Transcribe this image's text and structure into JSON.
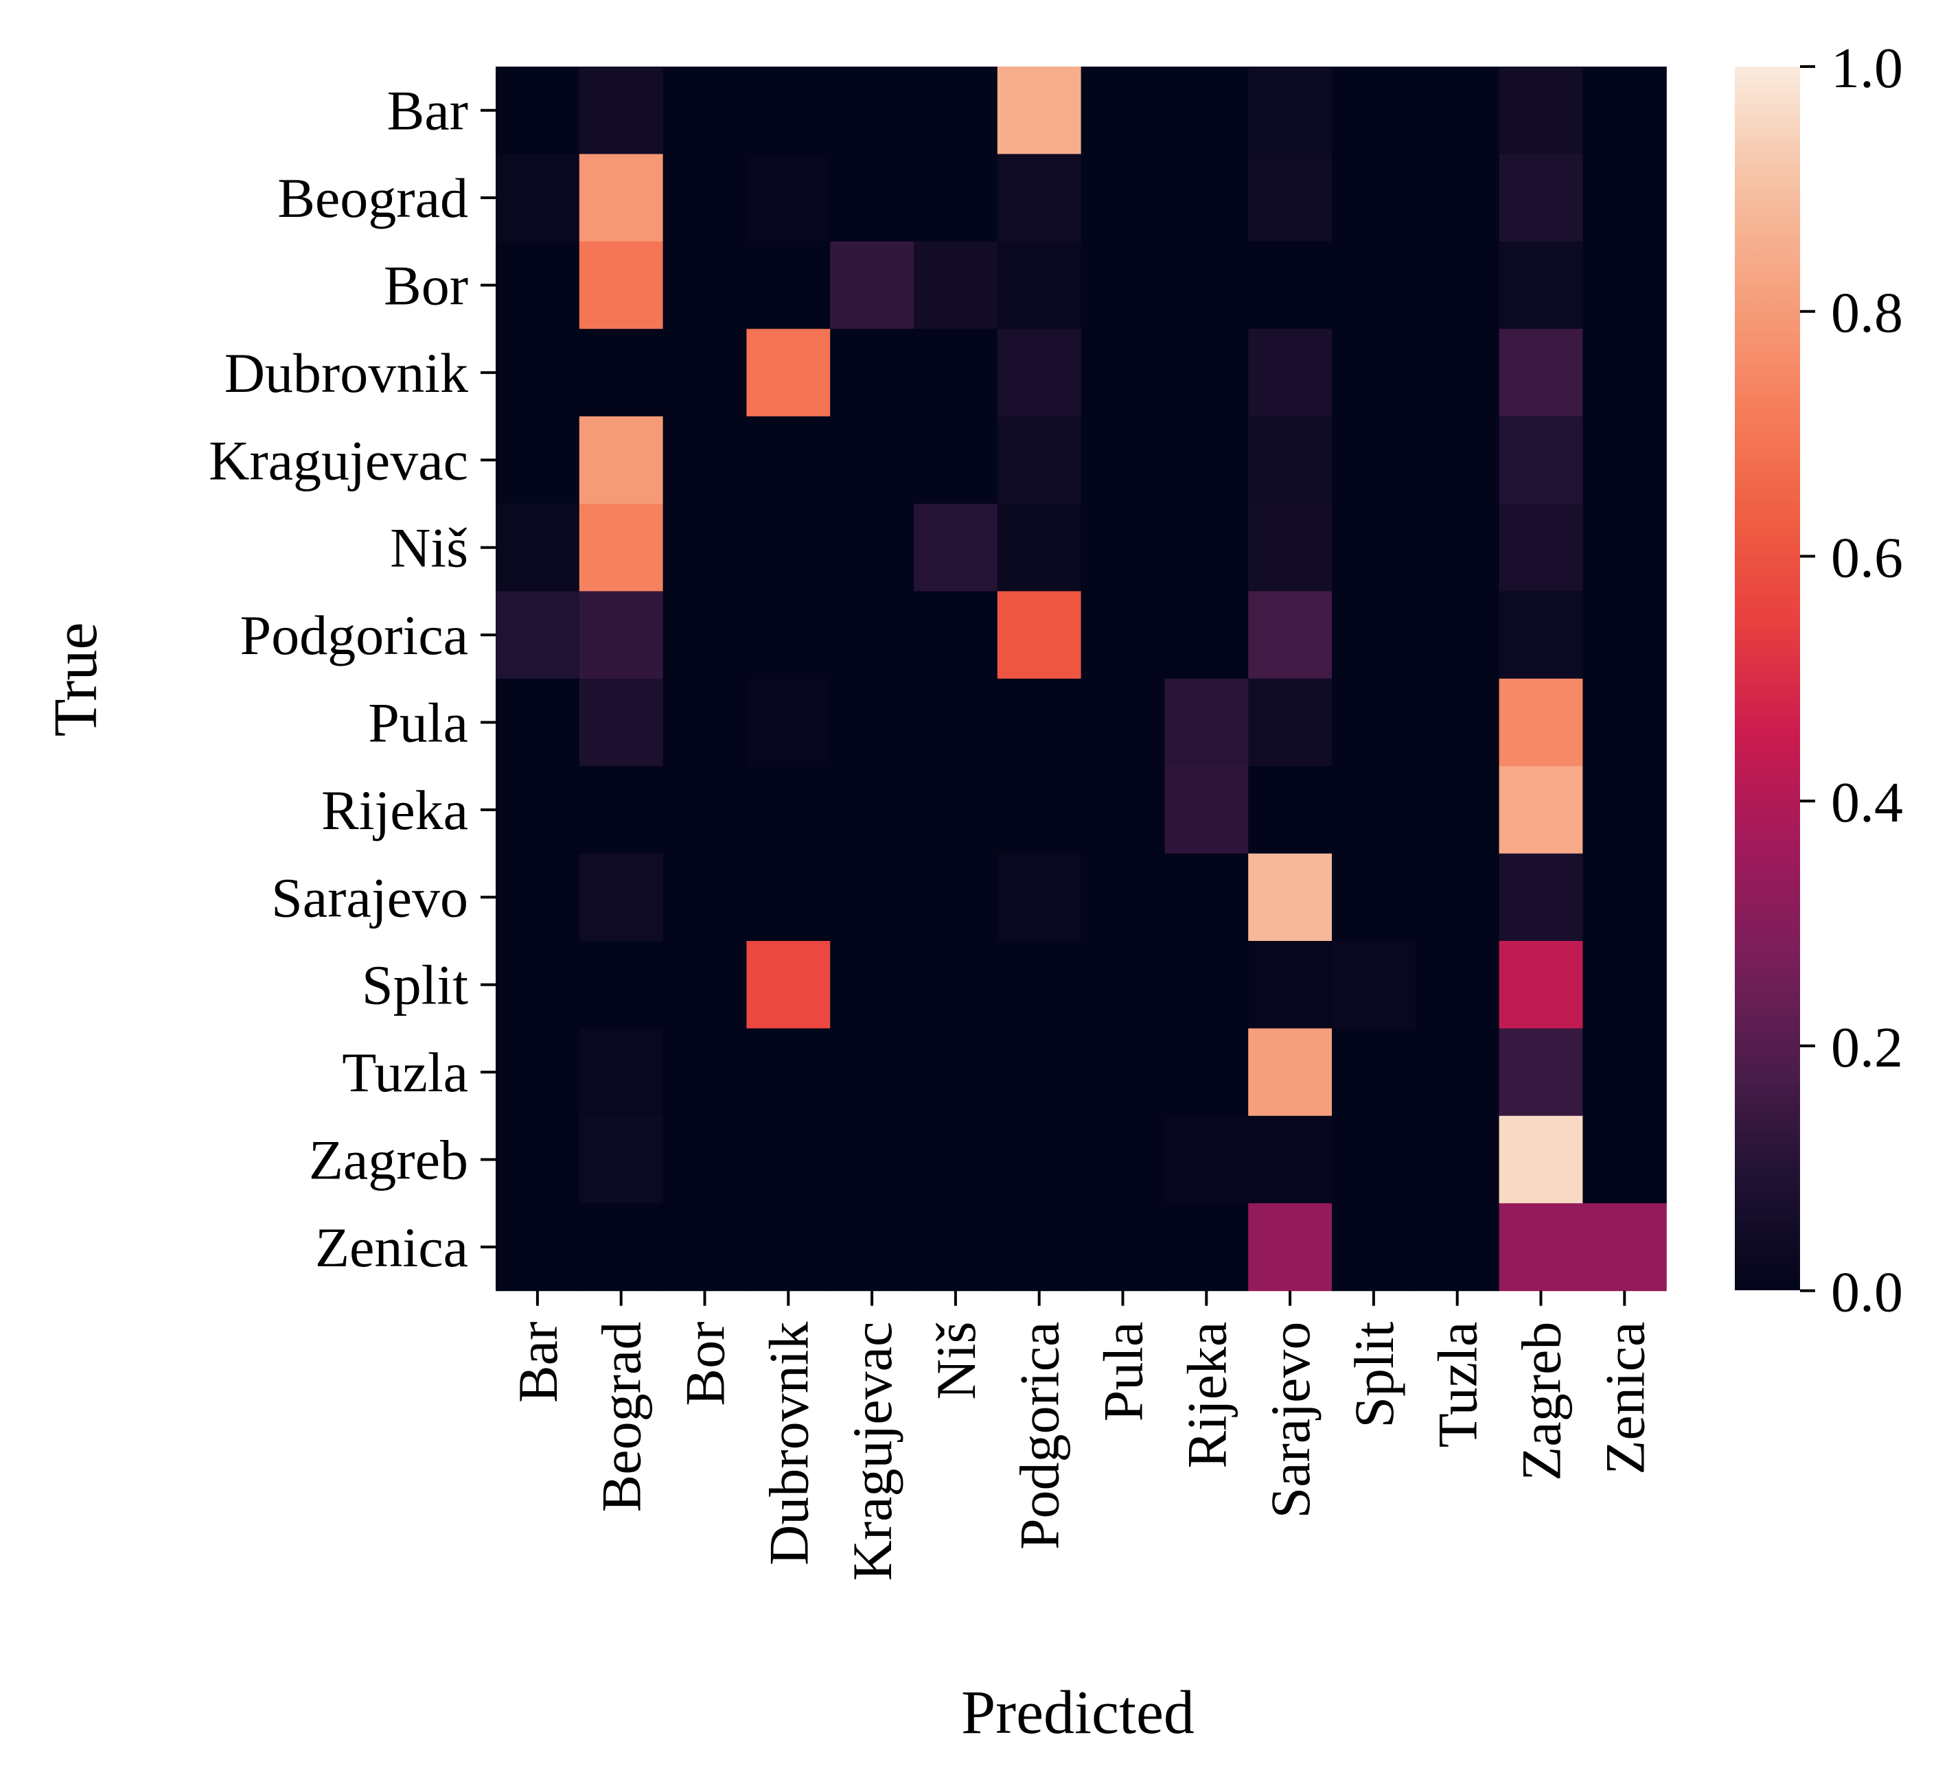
{
  "chart_data": {
    "type": "heatmap",
    "title": "",
    "xlabel": "Predicted",
    "ylabel": "True",
    "x_categories": [
      "Bar",
      "Beograd",
      "Bor",
      "Dubrovnik",
      "Kragujevac",
      "Niš",
      "Podgorica",
      "Pula",
      "Rijeka",
      "Sarajevo",
      "Split",
      "Tuzla",
      "Zagreb",
      "Zenica"
    ],
    "y_categories": [
      "Bar",
      "Beograd",
      "Bor",
      "Dubrovnik",
      "Kragujevac",
      "Niš",
      "Podgorica",
      "Pula",
      "Rijeka",
      "Sarajevo",
      "Split",
      "Tuzla",
      "Zagreb",
      "Zenica"
    ],
    "values": [
      [
        0.0,
        0.05,
        0.0,
        0.0,
        0.0,
        0.0,
        0.85,
        0.0,
        0.0,
        0.03,
        0.0,
        0.0,
        0.05,
        0.0
      ],
      [
        0.02,
        0.79,
        0.0,
        0.01,
        0.0,
        0.0,
        0.04,
        0.0,
        0.0,
        0.04,
        0.0,
        0.0,
        0.08,
        0.0
      ],
      [
        0.0,
        0.7,
        0.0,
        0.0,
        0.13,
        0.05,
        0.02,
        0.0,
        0.0,
        0.0,
        0.0,
        0.0,
        0.03,
        0.0
      ],
      [
        0.0,
        0.0,
        0.0,
        0.69,
        0.0,
        0.0,
        0.07,
        0.0,
        0.0,
        0.07,
        0.0,
        0.0,
        0.15,
        0.0
      ],
      [
        0.0,
        0.8,
        0.0,
        0.0,
        0.0,
        0.0,
        0.04,
        0.0,
        0.0,
        0.04,
        0.0,
        0.0,
        0.09,
        0.0
      ],
      [
        0.02,
        0.73,
        0.0,
        0.0,
        0.0,
        0.1,
        0.02,
        0.0,
        0.0,
        0.05,
        0.0,
        0.0,
        0.07,
        0.0
      ],
      [
        0.09,
        0.13,
        0.0,
        0.0,
        0.0,
        0.0,
        0.61,
        0.0,
        0.0,
        0.16,
        0.0,
        0.0,
        0.03,
        0.0
      ],
      [
        0.0,
        0.08,
        0.0,
        0.01,
        0.0,
        0.0,
        0.0,
        0.0,
        0.11,
        0.04,
        0.0,
        0.0,
        0.75,
        0.0
      ],
      [
        0.0,
        0.0,
        0.0,
        0.0,
        0.0,
        0.0,
        0.0,
        0.0,
        0.12,
        0.0,
        0.0,
        0.0,
        0.84,
        0.0
      ],
      [
        0.0,
        0.04,
        0.0,
        0.0,
        0.0,
        0.0,
        0.02,
        0.0,
        0.0,
        0.88,
        0.0,
        0.0,
        0.07,
        0.0
      ],
      [
        0.0,
        0.0,
        0.0,
        0.57,
        0.0,
        0.0,
        0.0,
        0.0,
        0.0,
        0.01,
        0.02,
        0.0,
        0.43,
        0.0
      ],
      [
        0.0,
        0.02,
        0.0,
        0.0,
        0.0,
        0.0,
        0.0,
        0.0,
        0.0,
        0.81,
        0.0,
        0.0,
        0.14,
        0.0
      ],
      [
        0.0,
        0.03,
        0.0,
        0.0,
        0.0,
        0.0,
        0.0,
        0.0,
        0.01,
        0.01,
        0.0,
        0.0,
        0.96,
        0.0
      ],
      [
        0.0,
        0.0,
        0.0,
        0.0,
        0.0,
        0.0,
        0.0,
        0.0,
        0.0,
        0.33,
        0.0,
        0.0,
        0.33,
        0.33
      ]
    ],
    "colorbar": {
      "range": [
        0.0,
        1.0
      ],
      "ticks": [
        0.0,
        0.2,
        0.4,
        0.6,
        0.8,
        1.0
      ],
      "tick_labels": [
        "0.0",
        "0.2",
        "0.4",
        "0.6",
        "0.8",
        "1.0"
      ],
      "colormap": "rocket",
      "stops": [
        "#03051a",
        "#1f1232",
        "#4c1d4b",
        "#7a1e5a",
        "#a11a5b",
        "#cb1b4f",
        "#e83f3f",
        "#f06043",
        "#f6805e",
        "#f6a27f",
        "#f6c2a5",
        "#faebdd"
      ]
    }
  }
}
